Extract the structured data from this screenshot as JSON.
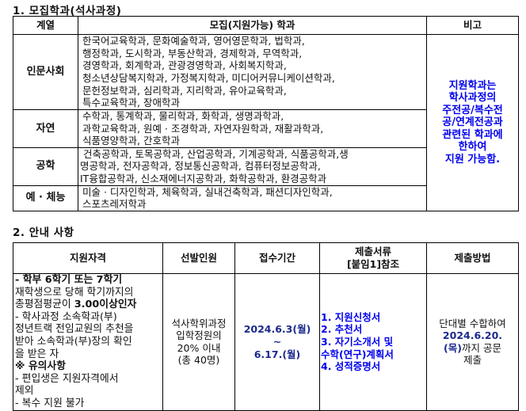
{
  "section1": {
    "title": "1. 모집학과(석사과정)",
    "headers": [
      "계열",
      "모집(지원가능) 학과",
      "비고"
    ],
    "rows": [
      {
        "category": "인문사회",
        "lines": [
          "한국어교육학과, 문화예술학과, 영어영문학과, 법학과,",
          "행정학과, 도시학과, 부동산학과, 경제학과, 무역학과,",
          "경영학과, 회계학과, 관광경영학과, 사회복지학과,",
          "청소년상담복지학과, 가정복지학과, 미디어커뮤니케이션학과,",
          "문헌정보학과, 심리학과, 지리학과, 유아교육학과,",
          "특수교육학과, 장애학과"
        ]
      },
      {
        "category": "자연",
        "lines": [
          "수학과, 통계학과, 물리학과, 화학과, 생명과학과,",
          "과학교육학과, 원예 · 조경학과, 자연자원학과, 재활과학과,",
          "식품영양학과, 간호학과"
        ]
      },
      {
        "category": "공학",
        "lines": [
          "건축공학과, 토목공학과, 산업공학과, 기계공학과, 식품공학과,생",
          "명공학과, 전자공학과, 정보통신공학과, 컴퓨터정보공학과,",
          "IT융합공학과, 신소재에너지공학과, 화학공학과, 환경공학과"
        ]
      },
      {
        "category": "예 · 체능",
        "lines": [
          "미술 · 디자인학과, 체육학과, 실내건축학과, 패션디자인학과,",
          "스포츠레저학과"
        ]
      }
    ],
    "note_lines": [
      "지원학과는",
      "학사과정의",
      "주전공/복수전",
      "공/연계전공과",
      "관련된 학과에",
      "한하여",
      "지원 가능함."
    ]
  },
  "section2": {
    "title": "2. 안내 사항",
    "headers": [
      "지원자격",
      "선발인원",
      "접수기간",
      "제출서류",
      "[붙임1]참조",
      "제출방법"
    ],
    "eligibility": [
      {
        "text": " - 학부 6학기 또는 7학기",
        "bold": true
      },
      {
        "text": "재학생으로 당해 학기까지의",
        "bold": false
      },
      {
        "text": "총평점평균이 ",
        "bold": false,
        "suffix": "3.00이상인자"
      },
      {
        "text": " - 학사과정 소속학과(부)",
        "bold": false
      },
      {
        "text": "정년트랙 전임교원의 추천을",
        "bold": false
      },
      {
        "text": "받아 소속학과(부)장의 확인",
        "bold": false
      },
      {
        "text": "을 받은 자",
        "bold": false
      },
      {
        "text": "※ 유의사항",
        "bold": true
      },
      {
        "text": " - 편입생은 지원자격에서",
        "bold": false
      },
      {
        "text": "제외",
        "bold": false
      },
      {
        "text": " - 복수 지원 불가",
        "bold": false
      }
    ],
    "quota_lines": [
      "석사학위과정",
      "입학정원의",
      "20% 이내",
      "(총 40명)"
    ],
    "period": {
      "start": "2024.6.3(월)",
      "sep": "~",
      "end": "6.17.(월)"
    },
    "documents": [
      " 1. 지원신청서",
      " 2. 추천서",
      " 3. 자기소개서 및",
      "수학(연구)계획서",
      " 4. 성적증명서"
    ],
    "method": {
      "line1": "단대별 수합하여",
      "date": "2024.6.20.",
      "weekday": "(목)",
      "line3": "까지 공문",
      "line4": "제출"
    }
  },
  "colors": {
    "note": "#0000ee",
    "date": "#1c2a8c"
  }
}
